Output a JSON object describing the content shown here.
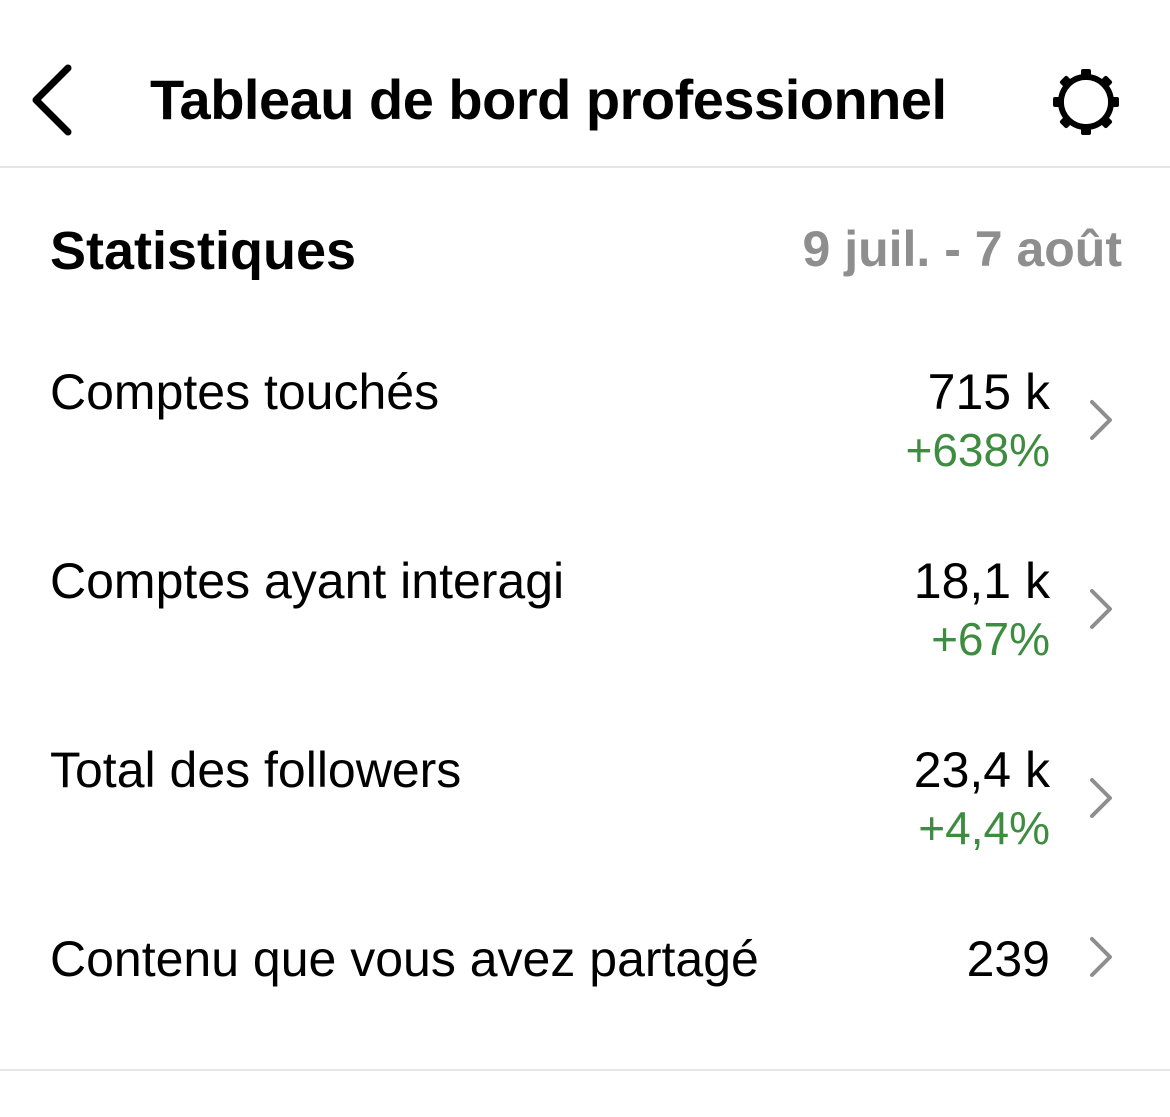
{
  "header": {
    "title": "Tableau de bord professionnel",
    "back_icon": "chevron-left-icon",
    "settings_icon": "gear-icon"
  },
  "statistics": {
    "title": "Statistiques",
    "date_range": "9 juil. - 7 août",
    "rows": [
      {
        "label": "Comptes touchés",
        "value": "715 k",
        "change": "+638%"
      },
      {
        "label": "Comptes ayant interagi",
        "value": "18,1 k",
        "change": "+67%"
      },
      {
        "label": "Total des followers",
        "value": "23,4 k",
        "change": "+4,4%"
      },
      {
        "label": "Contenu que vous avez partagé",
        "value": "239",
        "change": ""
      }
    ]
  },
  "colors": {
    "positive_change": "#3d8c40",
    "muted_text": "#8e8e8e",
    "divider": "#e6e6e6"
  }
}
